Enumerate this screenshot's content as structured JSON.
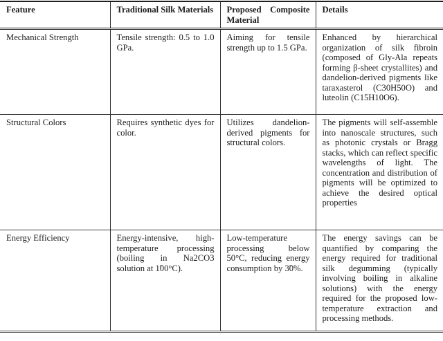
{
  "table": {
    "columns": [
      {
        "key": "feature",
        "label": "Feature"
      },
      {
        "key": "traditional",
        "label": "Traditional Silk Materials"
      },
      {
        "key": "proposed",
        "label": "Proposed Composite Material"
      },
      {
        "key": "details",
        "label": "Details"
      }
    ],
    "rows": [
      {
        "feature": "Mechanical Strength",
        "traditional": "Tensile strength: 0.5 to 1.0 GPa.",
        "proposed": "Aiming for tensile strength up to 1.5 GPa.",
        "details": "Enhanced by hierarchical organization of silk fibroin (composed of Gly-Ala repeats forming β-sheet crystallites) and dandelion-derived pigments like taraxasterol (C30H50O) and luteolin (C15H10O6)."
      },
      {
        "feature": "Structural Colors",
        "traditional": "Requires synthetic dyes for color.",
        "proposed": "Utilizes dandelion-derived pigments for structural colors.",
        "details": "The pigments will self-assemble into nanoscale structures, such as photonic crystals or Bragg stacks, which can reflect specific wavelengths of light.  The concentration and distribution of pigments will be optimized to achieve the desired optical properties"
      },
      {
        "feature": "Energy Efficiency",
        "traditional": "Energy-intensive, high-temperature processing (boiling in Na2CO3 solution at 1̃00°C).",
        "proposed": "Low-temperature processing below 50°C, reducing energy consumption by 3̃0%.",
        "details": "The energy savings can be quantified by comparing the energy required for traditional silk degumming (typically involving boiling in alkaline solutions) with the energy required for the proposed low-temperature extraction and processing methods."
      }
    ]
  },
  "colors": {
    "background": "#ffffff",
    "text": "#1c1c1c",
    "rule": "#1f1f1f"
  }
}
